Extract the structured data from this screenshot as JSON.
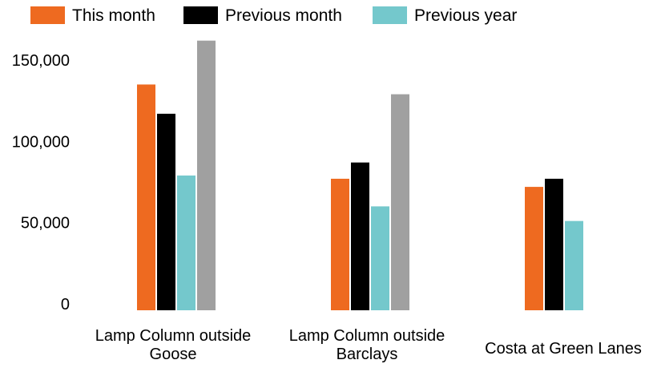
{
  "chart_data": {
    "type": "bar",
    "categories": [
      [
        "Lamp Column outside",
        "Goose"
      ],
      [
        "Lamp Column outside",
        "Barclays"
      ],
      [
        "Costa at Green Lanes"
      ]
    ],
    "series": [
      {
        "name": "This month",
        "color": "#EE6A20",
        "values": [
          135000,
          77000,
          72000
        ]
      },
      {
        "name": "Previous month",
        "color": "#000000",
        "values": [
          117000,
          87000,
          77000
        ]
      },
      {
        "name": "Previous year",
        "color": "#74C8CC",
        "values": [
          79000,
          60000,
          51000
        ]
      },
      {
        "color": "#A0A0A0",
        "values": [
          162000,
          129000,
          null
        ]
      }
    ],
    "y_ticks": [
      {
        "value": 0,
        "label": "0"
      },
      {
        "value": 50000,
        "label": "50,000"
      },
      {
        "value": 100000,
        "label": "100,000"
      },
      {
        "value": 150000,
        "label": "150,000"
      }
    ],
    "ylim": [
      0,
      150000
    ],
    "grid": false,
    "legend_position": "top-left"
  }
}
